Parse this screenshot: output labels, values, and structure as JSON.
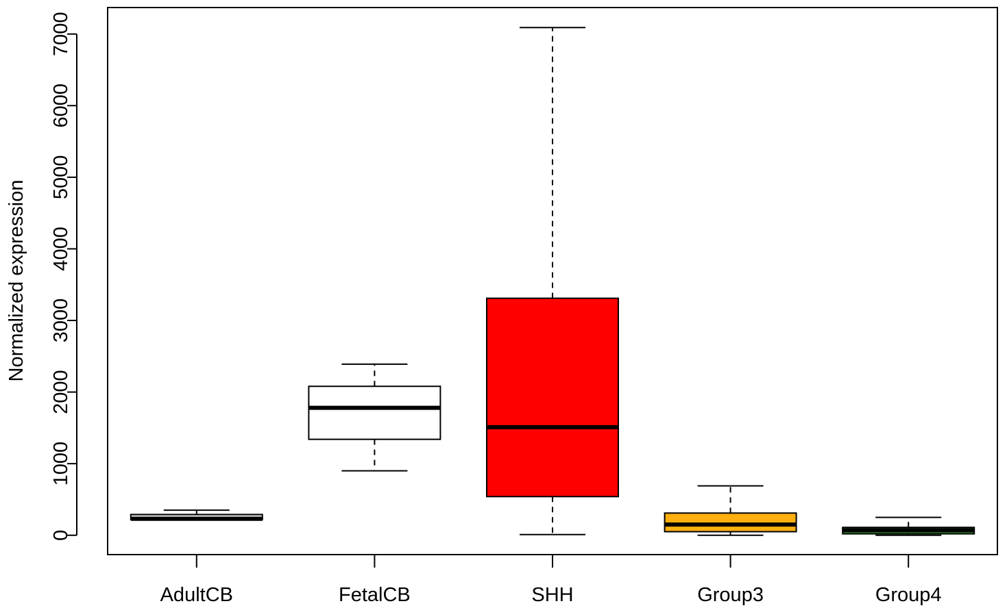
{
  "chart_data": {
    "type": "box",
    "title": "",
    "xlabel": "",
    "ylabel": "Normalized expression",
    "ylim": [
      -270,
      7370
    ],
    "yticks": [
      0,
      1000,
      2000,
      3000,
      4000,
      5000,
      6000,
      7000
    ],
    "grid": false,
    "categories": [
      "AdultCB",
      "FetalCB",
      "SHH",
      "Group3",
      "Group4"
    ],
    "boxes": [
      {
        "label": "AdultCB",
        "whisker_low": 220,
        "q1": 220,
        "median": 230,
        "q3": 290,
        "whisker_high": 350,
        "fill": "#d3d3d3"
      },
      {
        "label": "FetalCB",
        "whisker_low": 900,
        "q1": 1340,
        "median": 1780,
        "q3": 2080,
        "whisker_high": 2390,
        "fill": "#ffffff"
      },
      {
        "label": "SHH",
        "whisker_low": 10,
        "q1": 540,
        "median": 1510,
        "q3": 3310,
        "whisker_high": 7090,
        "fill": "#ff0000"
      },
      {
        "label": "Group3",
        "whisker_low": 0,
        "q1": 50,
        "median": 150,
        "q3": 310,
        "whisker_high": 690,
        "fill": "#ffb00f"
      },
      {
        "label": "Group4",
        "whisker_low": 0,
        "q1": 20,
        "median": 70,
        "q3": 110,
        "whisker_high": 250,
        "fill": "#33a02c"
      }
    ]
  }
}
